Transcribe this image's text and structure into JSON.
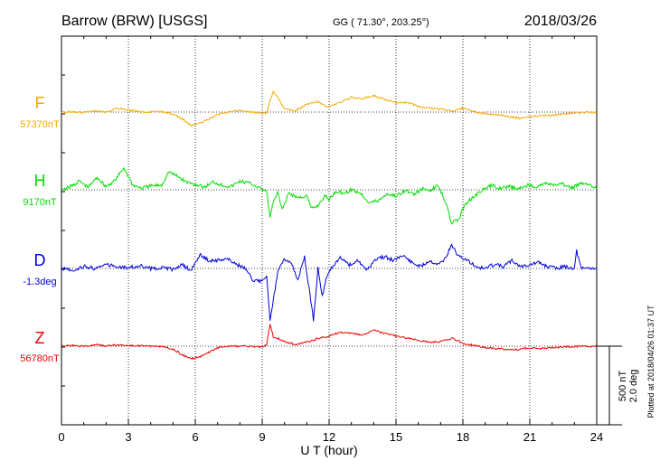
{
  "header": {
    "station": "Barrow (BRW)  [USGS]",
    "coords": "GG ( 71.30°, 203.25°)",
    "date": "2018/03/26"
  },
  "footer": {
    "plotted": "Plotted at 2018/04/26 01:37 UT"
  },
  "scale_bar": {
    "nT": "500 nT",
    "deg": "2.0 deg"
  },
  "colors": {
    "F": "#f5a800",
    "H": "#00dd00",
    "D": "#0000dd",
    "Z": "#ee0000"
  },
  "chart_data": {
    "type": "line",
    "xlabel": "U T (hour)",
    "xlim": [
      0,
      24
    ],
    "xticks": [
      "0",
      "3",
      "6",
      "9",
      "12",
      "15",
      "18",
      "21",
      "24"
    ],
    "grid": true,
    "series": [
      {
        "name": "F",
        "baseline_label": "57370nT",
        "unit": "nT",
        "baseline": 57370,
        "points": [
          [
            0,
            57370
          ],
          [
            0.5,
            57372
          ],
          [
            1,
            57368
          ],
          [
            1.5,
            57378
          ],
          [
            2,
            57370
          ],
          [
            2.5,
            57395
          ],
          [
            3,
            57382
          ],
          [
            3.5,
            57372
          ],
          [
            4,
            57370
          ],
          [
            4.5,
            57373
          ],
          [
            5,
            57358
          ],
          [
            5.5,
            57320
          ],
          [
            5.8,
            57285
          ],
          [
            6.2,
            57298
          ],
          [
            6.6,
            57325
          ],
          [
            7,
            57355
          ],
          [
            7.5,
            57372
          ],
          [
            8,
            57378
          ],
          [
            8.5,
            57370
          ],
          [
            9,
            57362
          ],
          [
            9.2,
            57365
          ],
          [
            9.35,
            57440
          ],
          [
            9.5,
            57500
          ],
          [
            9.7,
            57460
          ],
          [
            10,
            57392
          ],
          [
            10.5,
            57380
          ],
          [
            11,
            57420
          ],
          [
            11.5,
            57440
          ],
          [
            11.8,
            57410
          ],
          [
            12,
            57405
          ],
          [
            12.5,
            57430
          ],
          [
            13,
            57465
          ],
          [
            13.5,
            57455
          ],
          [
            14,
            57475
          ],
          [
            14.5,
            57450
          ],
          [
            15,
            57430
          ],
          [
            15.5,
            57432
          ],
          [
            16,
            57408
          ],
          [
            16.5,
            57395
          ],
          [
            17,
            57388
          ],
          [
            17.5,
            57375
          ],
          [
            18,
            57395
          ],
          [
            18.5,
            57372
          ],
          [
            19,
            57360
          ],
          [
            19.5,
            57352
          ],
          [
            20,
            57345
          ],
          [
            20.5,
            57330
          ],
          [
            21,
            57342
          ],
          [
            21.5,
            57348
          ],
          [
            22,
            57350
          ],
          [
            22.5,
            57358
          ],
          [
            23,
            57365
          ],
          [
            23.5,
            57368
          ],
          [
            24,
            57368
          ]
        ]
      },
      {
        "name": "H",
        "baseline_label": "9170nT",
        "unit": "nT",
        "baseline": 9170,
        "points": [
          [
            0,
            9170
          ],
          [
            0.4,
            9190
          ],
          [
            0.8,
            9225
          ],
          [
            1.2,
            9185
          ],
          [
            1.6,
            9250
          ],
          [
            2,
            9190
          ],
          [
            2.4,
            9230
          ],
          [
            2.8,
            9310
          ],
          [
            3.2,
            9200
          ],
          [
            3.6,
            9180
          ],
          [
            4,
            9195
          ],
          [
            4.5,
            9200
          ],
          [
            4.8,
            9285
          ],
          [
            5.2,
            9255
          ],
          [
            5.6,
            9220
          ],
          [
            6,
            9205
          ],
          [
            6.4,
            9185
          ],
          [
            6.8,
            9220
          ],
          [
            7.2,
            9200
          ],
          [
            7.6,
            9190
          ],
          [
            8,
            9225
          ],
          [
            8.5,
            9210
          ],
          [
            8.9,
            9180
          ],
          [
            9.2,
            9160
          ],
          [
            9.35,
            9000
          ],
          [
            9.5,
            9090
          ],
          [
            9.7,
            9150
          ],
          [
            9.9,
            9040
          ],
          [
            10.2,
            9150
          ],
          [
            10.6,
            9120
          ],
          [
            11,
            9130
          ],
          [
            11.2,
            9050
          ],
          [
            11.5,
            9070
          ],
          [
            11.8,
            9130
          ],
          [
            12,
            9110
          ],
          [
            12.3,
            9160
          ],
          [
            12.7,
            9150
          ],
          [
            13,
            9170
          ],
          [
            13.4,
            9150
          ],
          [
            13.8,
            9090
          ],
          [
            14.2,
            9100
          ],
          [
            14.6,
            9145
          ],
          [
            15,
            9130
          ],
          [
            15.4,
            9165
          ],
          [
            15.8,
            9145
          ],
          [
            16.2,
            9175
          ],
          [
            16.6,
            9170
          ],
          [
            16.9,
            9200
          ],
          [
            17.2,
            9100
          ],
          [
            17.5,
            8960
          ],
          [
            17.8,
            8980
          ],
          [
            18.1,
            9080
          ],
          [
            18.5,
            9130
          ],
          [
            18.9,
            9170
          ],
          [
            19.3,
            9200
          ],
          [
            19.7,
            9180
          ],
          [
            20.1,
            9190
          ],
          [
            20.5,
            9175
          ],
          [
            20.9,
            9200
          ],
          [
            21.3,
            9190
          ],
          [
            21.7,
            9210
          ],
          [
            22.1,
            9200
          ],
          [
            22.5,
            9205
          ],
          [
            22.9,
            9180
          ],
          [
            23.3,
            9215
          ],
          [
            23.7,
            9205
          ],
          [
            24,
            9175
          ]
        ]
      },
      {
        "name": "D",
        "baseline_label": "-1.3deg",
        "unit": "deg",
        "baseline": -1.3,
        "points": [
          [
            0,
            -1.3
          ],
          [
            0.5,
            -1.35
          ],
          [
            1,
            -1.25
          ],
          [
            1.5,
            -1.3
          ],
          [
            2,
            -1.2
          ],
          [
            2.5,
            -1.25
          ],
          [
            3,
            -1.28
          ],
          [
            3.5,
            -1.22
          ],
          [
            4,
            -1.3
          ],
          [
            4.5,
            -1.28
          ],
          [
            5,
            -1.32
          ],
          [
            5.4,
            -1.2
          ],
          [
            5.8,
            -1.35
          ],
          [
            6.2,
            -0.95
          ],
          [
            6.6,
            -1.1
          ],
          [
            7,
            -1.1
          ],
          [
            7.4,
            -1.05
          ],
          [
            7.8,
            -1.18
          ],
          [
            8.2,
            -1.3
          ],
          [
            8.6,
            -1.6
          ],
          [
            8.9,
            -1.62
          ],
          [
            9.2,
            -1.5
          ],
          [
            9.35,
            -2.6
          ],
          [
            9.5,
            -2.1
          ],
          [
            9.7,
            -1.4
          ],
          [
            10,
            -1.05
          ],
          [
            10.3,
            -1.15
          ],
          [
            10.6,
            -1.6
          ],
          [
            10.9,
            -1.0
          ],
          [
            11.1,
            -1.8
          ],
          [
            11.3,
            -2.6
          ],
          [
            11.5,
            -1.3
          ],
          [
            11.7,
            -2.0
          ],
          [
            11.9,
            -1.5
          ],
          [
            12.1,
            -1.3
          ],
          [
            12.5,
            -1.0
          ],
          [
            12.9,
            -1.2
          ],
          [
            13.3,
            -1.1
          ],
          [
            13.7,
            -1.35
          ],
          [
            14.1,
            -1.05
          ],
          [
            14.5,
            -1.0
          ],
          [
            14.9,
            -1.1
          ],
          [
            15.3,
            -0.95
          ],
          [
            15.7,
            -1.15
          ],
          [
            16.1,
            -1.25
          ],
          [
            16.5,
            -1.1
          ],
          [
            16.9,
            -1.2
          ],
          [
            17.2,
            -1.05
          ],
          [
            17.5,
            -0.7
          ],
          [
            17.8,
            -1.0
          ],
          [
            18.2,
            -1.1
          ],
          [
            18.6,
            -1.25
          ],
          [
            19,
            -1.3
          ],
          [
            19.4,
            -1.2
          ],
          [
            19.8,
            -1.25
          ],
          [
            20.2,
            -1.1
          ],
          [
            20.6,
            -1.25
          ],
          [
            21,
            -1.2
          ],
          [
            21.4,
            -1.15
          ],
          [
            21.8,
            -1.25
          ],
          [
            22.2,
            -1.3
          ],
          [
            22.6,
            -1.25
          ],
          [
            23,
            -1.3
          ],
          [
            23.1,
            -0.85
          ],
          [
            23.3,
            -1.3
          ],
          [
            23.7,
            -1.28
          ],
          [
            24,
            -1.3
          ]
        ]
      },
      {
        "name": "Z",
        "baseline_label": "56780nT",
        "unit": "nT",
        "baseline": 56780,
        "points": [
          [
            0,
            56780
          ],
          [
            0.5,
            56785
          ],
          [
            1,
            56778
          ],
          [
            1.5,
            56790
          ],
          [
            2,
            56780
          ],
          [
            2.5,
            56788
          ],
          [
            3,
            56785
          ],
          [
            3.5,
            56782
          ],
          [
            4,
            56780
          ],
          [
            4.5,
            56778
          ],
          [
            5,
            56760
          ],
          [
            5.5,
            56720
          ],
          [
            5.8,
            56700
          ],
          [
            6.2,
            56712
          ],
          [
            6.6,
            56740
          ],
          [
            7,
            56770
          ],
          [
            7.5,
            56780
          ],
          [
            8,
            56780
          ],
          [
            8.5,
            56778
          ],
          [
            9,
            56775
          ],
          [
            9.2,
            56790
          ],
          [
            9.35,
            56920
          ],
          [
            9.5,
            56840
          ],
          [
            9.7,
            56830
          ],
          [
            10,
            56810
          ],
          [
            10.5,
            56790
          ],
          [
            11,
            56805
          ],
          [
            11.5,
            56830
          ],
          [
            12,
            56845
          ],
          [
            12.5,
            56870
          ],
          [
            13,
            56860
          ],
          [
            13.5,
            56850
          ],
          [
            14,
            56880
          ],
          [
            14.5,
            56860
          ],
          [
            15,
            56845
          ],
          [
            15.5,
            56830
          ],
          [
            16,
            56820
          ],
          [
            16.5,
            56805
          ],
          [
            17,
            56810
          ],
          [
            17.5,
            56830
          ],
          [
            17.8,
            56815
          ],
          [
            18,
            56795
          ],
          [
            18.5,
            56785
          ],
          [
            19,
            56770
          ],
          [
            19.5,
            56765
          ],
          [
            20,
            56760
          ],
          [
            20.5,
            56758
          ],
          [
            21,
            56770
          ],
          [
            21.5,
            56765
          ],
          [
            22,
            56770
          ],
          [
            22.5,
            56775
          ],
          [
            23,
            56778
          ],
          [
            23.5,
            56780
          ],
          [
            24,
            56780
          ]
        ]
      }
    ]
  }
}
